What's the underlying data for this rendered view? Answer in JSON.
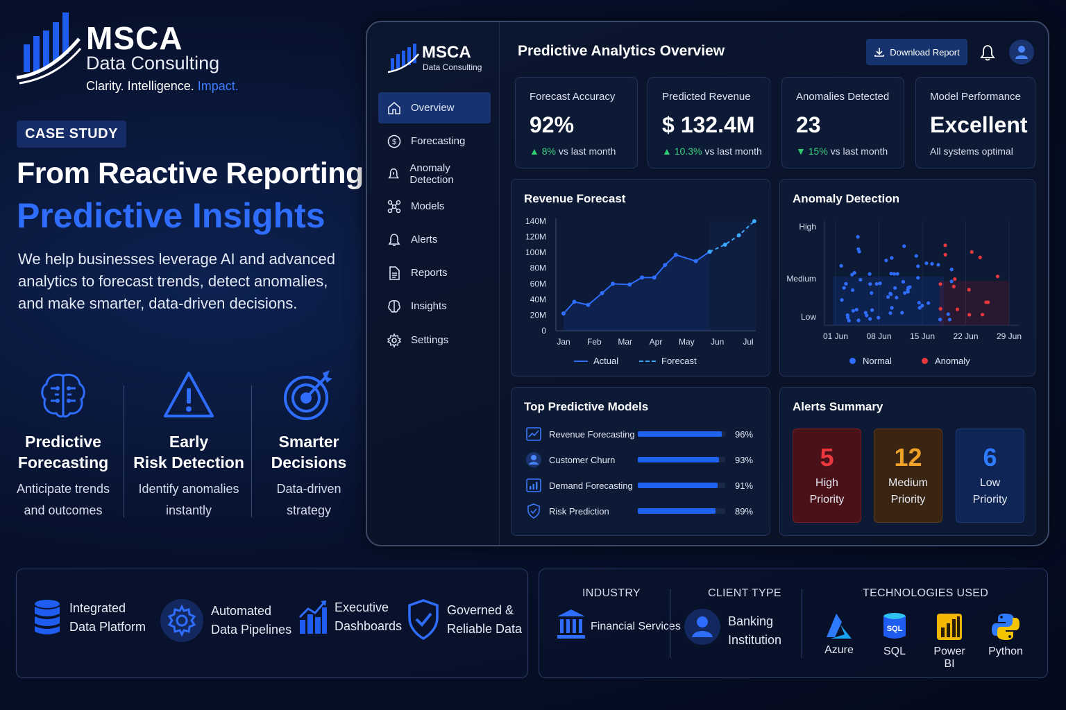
{
  "brand": {
    "name": "MSCA",
    "subtitle": "Data Consulting",
    "tagline_a": "Clarity. Intelligence.",
    "tagline_b": "Impact."
  },
  "hero": {
    "badge": "CASE STUDY",
    "title_line1": "From Reactive Reporting to",
    "title_line2": "Predictive Insights",
    "description": "We help businesses leverage AI and advanced analytics to forecast trends, detect anomalies, and make smarter, data-driven decisions."
  },
  "features": [
    {
      "icon": "brain-icon",
      "title_l1": "Predictive",
      "title_l2": "Forecasting",
      "desc_l1": "Anticipate trends",
      "desc_l2": "and outcomes"
    },
    {
      "icon": "warning-icon",
      "title_l1": "Early",
      "title_l2": "Risk Detection",
      "desc_l1": "Identify anomalies",
      "desc_l2": "instantly"
    },
    {
      "icon": "target-icon",
      "title_l1": "Smarter",
      "title_l2": "Decisions",
      "desc_l1": "Data-driven",
      "desc_l2": "strategy"
    }
  ],
  "dashboard": {
    "brand_name": "MSCA",
    "brand_sub": "Data Consulting",
    "title": "Predictive Analytics Overview",
    "download_label": "Download Report",
    "nav": [
      {
        "label": "Overview",
        "icon": "home-icon",
        "active": true
      },
      {
        "label": "Forecasting",
        "icon": "dollar-icon"
      },
      {
        "label": "Anomaly Detection",
        "icon": "warning-icon"
      },
      {
        "label": "Models",
        "icon": "models-icon"
      },
      {
        "label": "Alerts",
        "icon": "bell-icon"
      },
      {
        "label": "Reports",
        "icon": "document-icon"
      },
      {
        "label": "Insights",
        "icon": "brain-icon"
      },
      {
        "label": "Settings",
        "icon": "gear-icon"
      }
    ],
    "kpis": [
      {
        "label": "Forecast Accuracy",
        "value": "92%",
        "trend": "up",
        "change": "8%",
        "suffix": " vs last month"
      },
      {
        "label": "Predicted Revenue",
        "value": "$ 132.4M",
        "trend": "up",
        "change": "10.3%",
        "suffix": " vs last month"
      },
      {
        "label": "Anomalies Detected",
        "value": "23",
        "trend": "down",
        "change": "15%",
        "suffix": " vs last month"
      },
      {
        "label": "Model Performance",
        "value": "Excellent",
        "note": "All systems optimal"
      }
    ],
    "revenue_title": "Revenue Forecast",
    "anomaly_title": "Anomaly Detection",
    "models_title": "Top Predictive Models",
    "alerts_title": "Alerts Summary",
    "models": [
      {
        "name": "Revenue Forecasting",
        "icon": "line-chart-icon",
        "pct": "96%",
        "value": 96
      },
      {
        "name": "Customer Churn",
        "icon": "user-icon",
        "pct": "93%",
        "value": 93
      },
      {
        "name": "Demand Forecasting",
        "icon": "bar-chart-icon",
        "pct": "91%",
        "value": 91
      },
      {
        "name": "Risk Prediction",
        "icon": "shield-icon",
        "pct": "89%",
        "value": 89
      }
    ],
    "alerts": [
      {
        "count": "5",
        "l1": "High",
        "l2": "Priority",
        "color": "#e8383d",
        "bg": "#4a1119",
        "border": "#7a1c25"
      },
      {
        "count": "12",
        "l1": "Medium",
        "l2": "Priority",
        "color": "#f0a12a",
        "bg": "#3a2412",
        "border": "#5b3a19"
      },
      {
        "count": "6",
        "l1": "Low",
        "l2": "Priority",
        "color": "#2f7bff",
        "bg": "#0f2555",
        "border": "#1d3b7a"
      }
    ]
  },
  "chart_data": [
    {
      "type": "line",
      "title": "Revenue Forecast",
      "categories": [
        "Jan",
        "Feb",
        "Mar",
        "Apr",
        "May",
        "Jun",
        "Jul"
      ],
      "y_ticks": [
        "0",
        "20M",
        "40M",
        "60M",
        "80M",
        "100M",
        "120M",
        "140M"
      ],
      "ylim": [
        0,
        140
      ],
      "series": [
        {
          "name": "Actual",
          "style": "solid",
          "color": "#2f6dff",
          "x": [
            0,
            0.35,
            0.8,
            1.25,
            1.6,
            2.15,
            2.55,
            2.95,
            3.3,
            3.65,
            4.3,
            4.75
          ],
          "y": [
            22,
            37,
            33,
            48,
            60,
            59,
            68,
            68,
            84,
            97,
            89,
            101
          ]
        },
        {
          "name": "Forecast",
          "style": "dashed",
          "color": "#3aa8ff",
          "x": [
            4.75,
            5.25,
            5.7,
            6.2
          ],
          "y": [
            101,
            110,
            122,
            140
          ]
        }
      ],
      "legend": "bottom"
    },
    {
      "type": "scatter",
      "title": "Anomaly Detection",
      "x_ticks": [
        "01 Jun",
        "08 Jun",
        "15 Jun",
        "22 Jun",
        "29 Jun"
      ],
      "y_ticks": [
        "Low",
        "Medium",
        "High"
      ],
      "series": [
        {
          "name": "Normal",
          "color": "#2f6dff"
        },
        {
          "name": "Anomaly",
          "color": "#e8383d"
        }
      ],
      "legend": "bottom"
    }
  ],
  "bottom": {
    "capabilities": [
      {
        "icon": "database-icon",
        "l1": "Integrated",
        "l2": "Data Platform"
      },
      {
        "icon": "gear-icon",
        "l1": "Automated",
        "l2": "Data Pipelines"
      },
      {
        "icon": "bar-chart-icon",
        "l1": "Executive",
        "l2": "Dashboards"
      },
      {
        "icon": "shield-check-icon",
        "l1": "Governed &",
        "l2": "Reliable Data"
      }
    ],
    "industry_label": "INDUSTRY",
    "industry_value": "Financial Services",
    "client_label": "CLIENT TYPE",
    "client_l1": "Banking",
    "client_l2": "Institution",
    "tech_label": "TECHNOLOGIES USED",
    "technologies": [
      {
        "name": "Azure",
        "icon": "azure-icon"
      },
      {
        "name": "SQL",
        "icon": "sql-icon"
      },
      {
        "name": "Power BI",
        "icon": "powerbi-icon"
      },
      {
        "name": "Python",
        "icon": "python-icon"
      }
    ]
  }
}
